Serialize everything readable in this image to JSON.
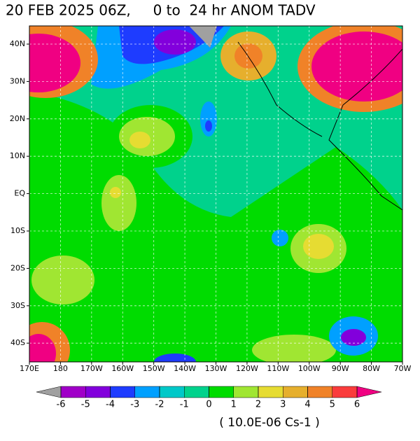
{
  "header": {
    "title": "20 FEB 2025 06Z,     0 to  24 hr ANOM TADV"
  },
  "map": {
    "lat_labels": [
      "40N",
      "30N",
      "20N",
      "10N",
      "EQ",
      "10S",
      "20S",
      "30S",
      "40S"
    ],
    "lon_labels": [
      "170E",
      "180",
      "170W",
      "160W",
      "150W",
      "140W",
      "130W",
      "120W",
      "110W",
      "100W",
      "90W",
      "80W",
      "70W"
    ]
  },
  "colorbar": {
    "ticks": [
      -6,
      -5,
      -4,
      -3,
      -2,
      -1,
      0,
      1,
      2,
      3,
      4,
      5,
      6
    ],
    "colors": [
      "#a000c8",
      "#8200dc",
      "#1e3cff",
      "#00a0ff",
      "#00c8c8",
      "#00d28c",
      "#00dc00",
      "#a0e632",
      "#e6dc32",
      "#e6af2d",
      "#f08228",
      "#fa3c3c"
    ],
    "under_color": "#a0a0a0",
    "over_color": "#f00082"
  },
  "units": "( 10.0E-06 Cs-1 )"
}
